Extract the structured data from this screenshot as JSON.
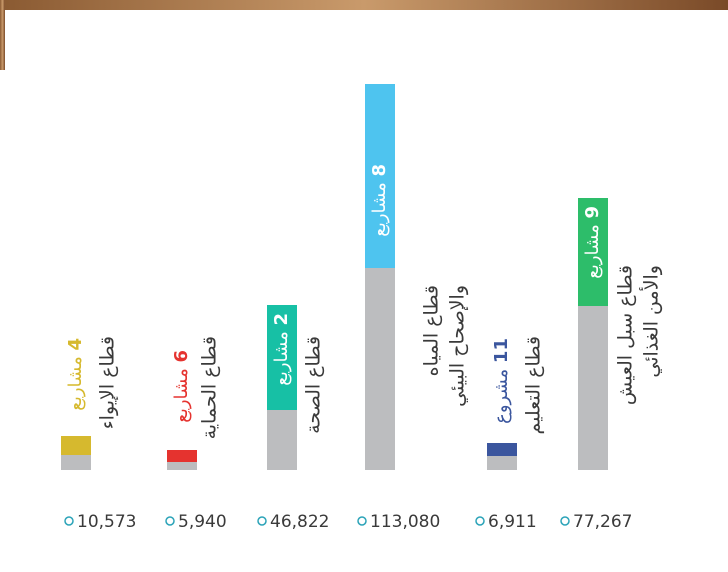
{
  "sectors": [
    {
      "count": 4,
      "unit": "مشاريع",
      "label": [
        "قطاع الإيواء"
      ],
      "beneficiaries": "10,573",
      "color": "#d6b92e"
    },
    {
      "count": 6,
      "unit": "مشاريع",
      "label": [
        "قطاع الحماية"
      ],
      "beneficiaries": "5,940",
      "color": "#e5332f"
    },
    {
      "count": 2,
      "unit": "مشاريع",
      "label": [
        "قطاع الصحة"
      ],
      "beneficiaries": "46,822",
      "color": "#17c0a5"
    },
    {
      "count": 8,
      "unit": "مشاريع",
      "label": [
        "قطاع المياه",
        "والإصحاح البيئي"
      ],
      "beneficiaries": "113,080",
      "color": "#4ec4ef"
    },
    {
      "count": 11,
      "unit": "مشروع",
      "label": [
        "قطاع التعليم"
      ],
      "beneficiaries": "6,911",
      "color": "#3b569e"
    },
    {
      "count": 9,
      "unit": "مشاريع",
      "label": [
        "قطاع سبل العيش",
        "والأمن الغذائي"
      ],
      "beneficiaries": "77,267",
      "color": "#2dbd6a"
    }
  ]
}
